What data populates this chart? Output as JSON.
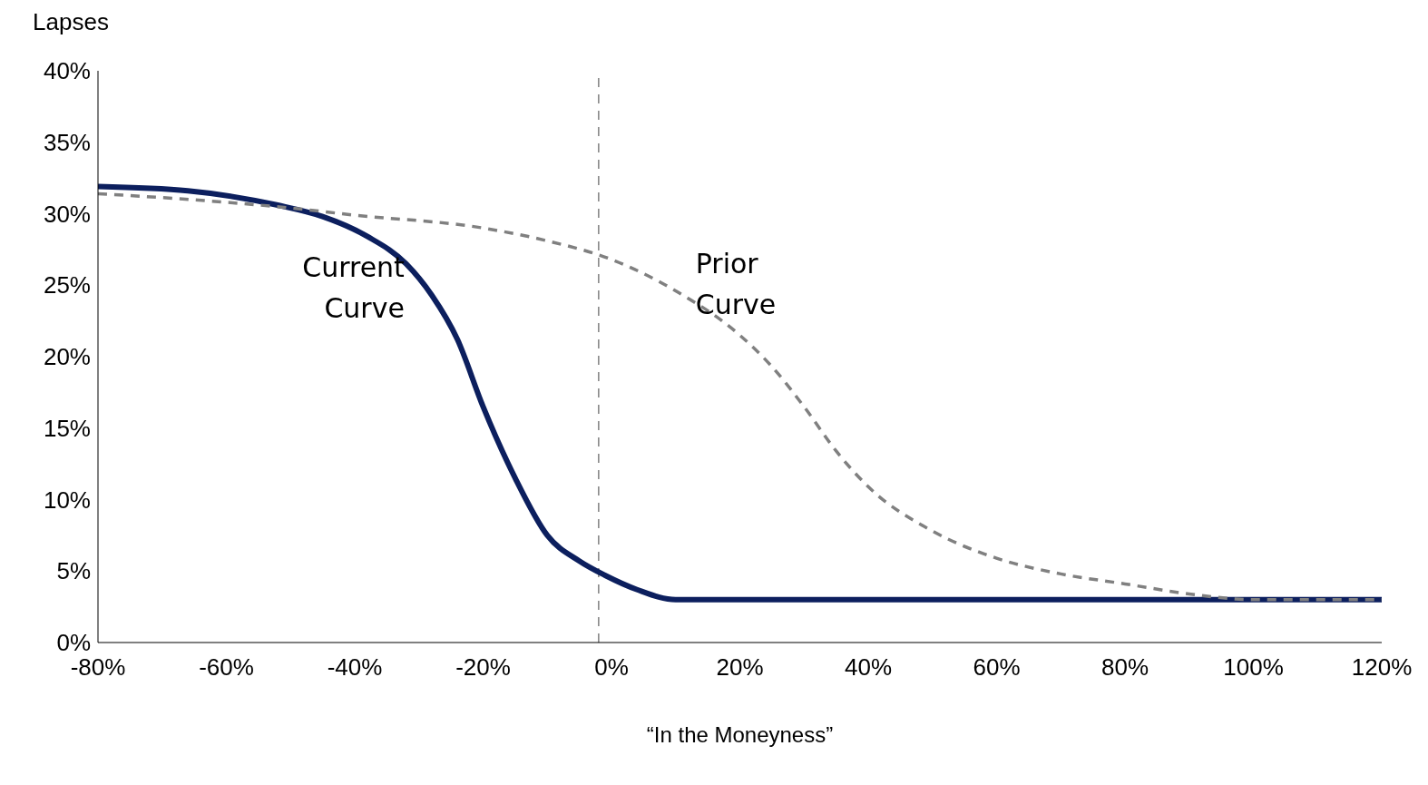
{
  "chart_data": {
    "type": "line",
    "xlabel": "“In the Moneyness”",
    "ylabel": "Lapses",
    "xlim": [
      -80,
      120
    ],
    "ylim": [
      0,
      40
    ],
    "xticks": [
      {
        "value": -80,
        "label": "-80%"
      },
      {
        "value": -60,
        "label": "-60%"
      },
      {
        "value": -40,
        "label": "-40%"
      },
      {
        "value": -20,
        "label": "-20%"
      },
      {
        "value": 0,
        "label": "0%"
      },
      {
        "value": 20,
        "label": "20%"
      },
      {
        "value": 40,
        "label": "40%"
      },
      {
        "value": 60,
        "label": "60%"
      },
      {
        "value": 80,
        "label": "80%"
      },
      {
        "value": 100,
        "label": "100%"
      },
      {
        "value": 120,
        "label": "120%"
      }
    ],
    "yticks": [
      {
        "value": 0,
        "label": "0%"
      },
      {
        "value": 5,
        "label": "5%"
      },
      {
        "value": 10,
        "label": "10%"
      },
      {
        "value": 15,
        "label": "15%"
      },
      {
        "value": 20,
        "label": "20%"
      },
      {
        "value": 25,
        "label": "25%"
      },
      {
        "value": 30,
        "label": "30%"
      },
      {
        "value": 35,
        "label": "35%"
      },
      {
        "value": 40,
        "label": "40%"
      }
    ],
    "grid": false,
    "legend": false,
    "marker": "none",
    "ref_lines": [
      {
        "axis": "x",
        "value": -2,
        "color": "#808080",
        "line_style": "dashed"
      }
    ],
    "series": [
      {
        "name": "Current Curve",
        "color": "#0c1f5e",
        "line_style": "solid",
        "x": [
          -80,
          -66,
          -52,
          -45,
          -38,
          -32,
          -28,
          -24,
          -20,
          -15,
          -10,
          -5,
          -1,
          4,
          10,
          16,
          120
        ],
        "values": [
          31.9,
          31.6,
          30.6,
          29.8,
          28.4,
          26.5,
          24.3,
          21.2,
          16.5,
          11.5,
          7.5,
          5.7,
          4.7,
          3.7,
          3.0,
          3.0,
          3.0
        ]
      },
      {
        "name": "Prior Curve",
        "color": "#808080",
        "line_style": "dashed",
        "x": [
          -80,
          -60,
          -50,
          -40,
          -20,
          -10,
          0,
          10,
          20,
          25,
          30,
          35,
          40,
          50,
          60,
          70,
          80,
          90,
          100,
          120
        ],
        "values": [
          31.4,
          30.8,
          30.4,
          29.9,
          29.0,
          28.1,
          26.8,
          24.6,
          21.5,
          19.3,
          16.5,
          13.4,
          10.9,
          7.8,
          5.9,
          4.8,
          4.1,
          3.4,
          3.0,
          3.0
        ]
      }
    ]
  }
}
